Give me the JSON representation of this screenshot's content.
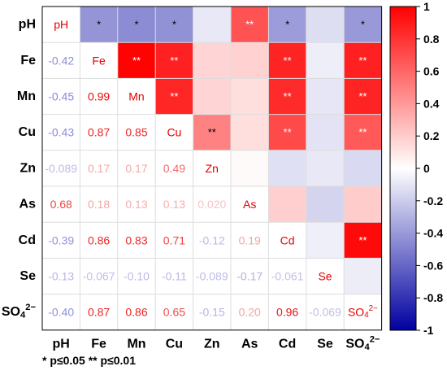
{
  "chart_data": {
    "type": "heatmap",
    "variables": [
      "pH",
      "Fe",
      "Mn",
      "Cu",
      "Zn",
      "As",
      "Cd",
      "Se",
      "SO4"
    ],
    "labels": {
      "pH": "pH",
      "Fe": "Fe",
      "Mn": "Mn",
      "Cu": "Cu",
      "Zn": "Zn",
      "As": "As",
      "Cd": "Cd",
      "Se": "Se",
      "SO4": "SO4 2−"
    },
    "matrix": [
      [
        1,
        -0.42,
        -0.45,
        -0.43,
        -0.089,
        0.68,
        -0.39,
        -0.13,
        -0.4
      ],
      [
        -0.42,
        1,
        0.99,
        0.87,
        0.17,
        0.18,
        0.86,
        -0.067,
        0.87
      ],
      [
        -0.45,
        0.99,
        1,
        0.85,
        0.17,
        0.13,
        0.83,
        -0.1,
        0.86
      ],
      [
        -0.43,
        0.87,
        0.85,
        1,
        0.49,
        0.13,
        0.71,
        -0.11,
        0.65
      ],
      [
        -0.089,
        0.17,
        0.17,
        0.49,
        1,
        0.02,
        -0.12,
        -0.089,
        -0.15
      ],
      [
        0.68,
        0.18,
        0.13,
        0.13,
        0.02,
        1,
        0.19,
        -0.17,
        0.2
      ],
      [
        -0.39,
        0.86,
        0.83,
        0.71,
        -0.12,
        0.19,
        1,
        -0.061,
        0.96
      ],
      [
        -0.13,
        -0.067,
        -0.1,
        -0.11,
        -0.089,
        -0.17,
        -0.061,
        1,
        -0.069
      ],
      [
        -0.4,
        0.87,
        0.86,
        0.65,
        -0.15,
        0.2,
        0.96,
        -0.069,
        1
      ]
    ],
    "lower_labels": [
      [
        "pH"
      ],
      [
        "-0.42",
        "Fe"
      ],
      [
        "-0.45",
        "0.99",
        "Mn"
      ],
      [
        "-0.43",
        "0.87",
        "0.85",
        "Cu"
      ],
      [
        "-0.089",
        "0.17",
        "0.17",
        "0.49",
        "Zn"
      ],
      [
        "0.68",
        "0.18",
        "0.13",
        "0.13",
        "0.020",
        "As"
      ],
      [
        "-0.39",
        "0.86",
        "0.83",
        "0.71",
        "-0.12",
        "0.19",
        "Cd"
      ],
      [
        "-0.13",
        "-0.067",
        "-0.10",
        "-0.11",
        "-0.089",
        "-0.17",
        "-0.061",
        "Se"
      ],
      [
        "-0.40",
        "0.87",
        "0.86",
        "0.65",
        "-0.15",
        "0.20",
        "0.96",
        "-0.069",
        "SO4 2−"
      ]
    ],
    "significance": {
      "0-1": "*",
      "0-2": "*",
      "0-3": "*",
      "0-5": "**",
      "0-6": "*",
      "0-8": "*",
      "1-2": "**",
      "1-3": "**",
      "1-6": "**",
      "1-8": "**",
      "2-3": "**",
      "2-6": "**",
      "2-8": "**",
      "3-4": "**",
      "3-6": "**",
      "3-8": "**",
      "6-8": "**"
    },
    "colorbar": {
      "min": -1,
      "max": 1,
      "ticks": [
        "1",
        "0.8",
        "0.6",
        "0.4",
        "0.2",
        "0",
        "-0.2",
        "-0.4",
        "-0.6",
        "-0.8",
        "-1"
      ],
      "colors": {
        "negative": "#0000a0",
        "zero": "#ffffff",
        "positive": "#ff0000"
      }
    },
    "legend_note": "* p≤0.05  ** p≤0.01"
  }
}
